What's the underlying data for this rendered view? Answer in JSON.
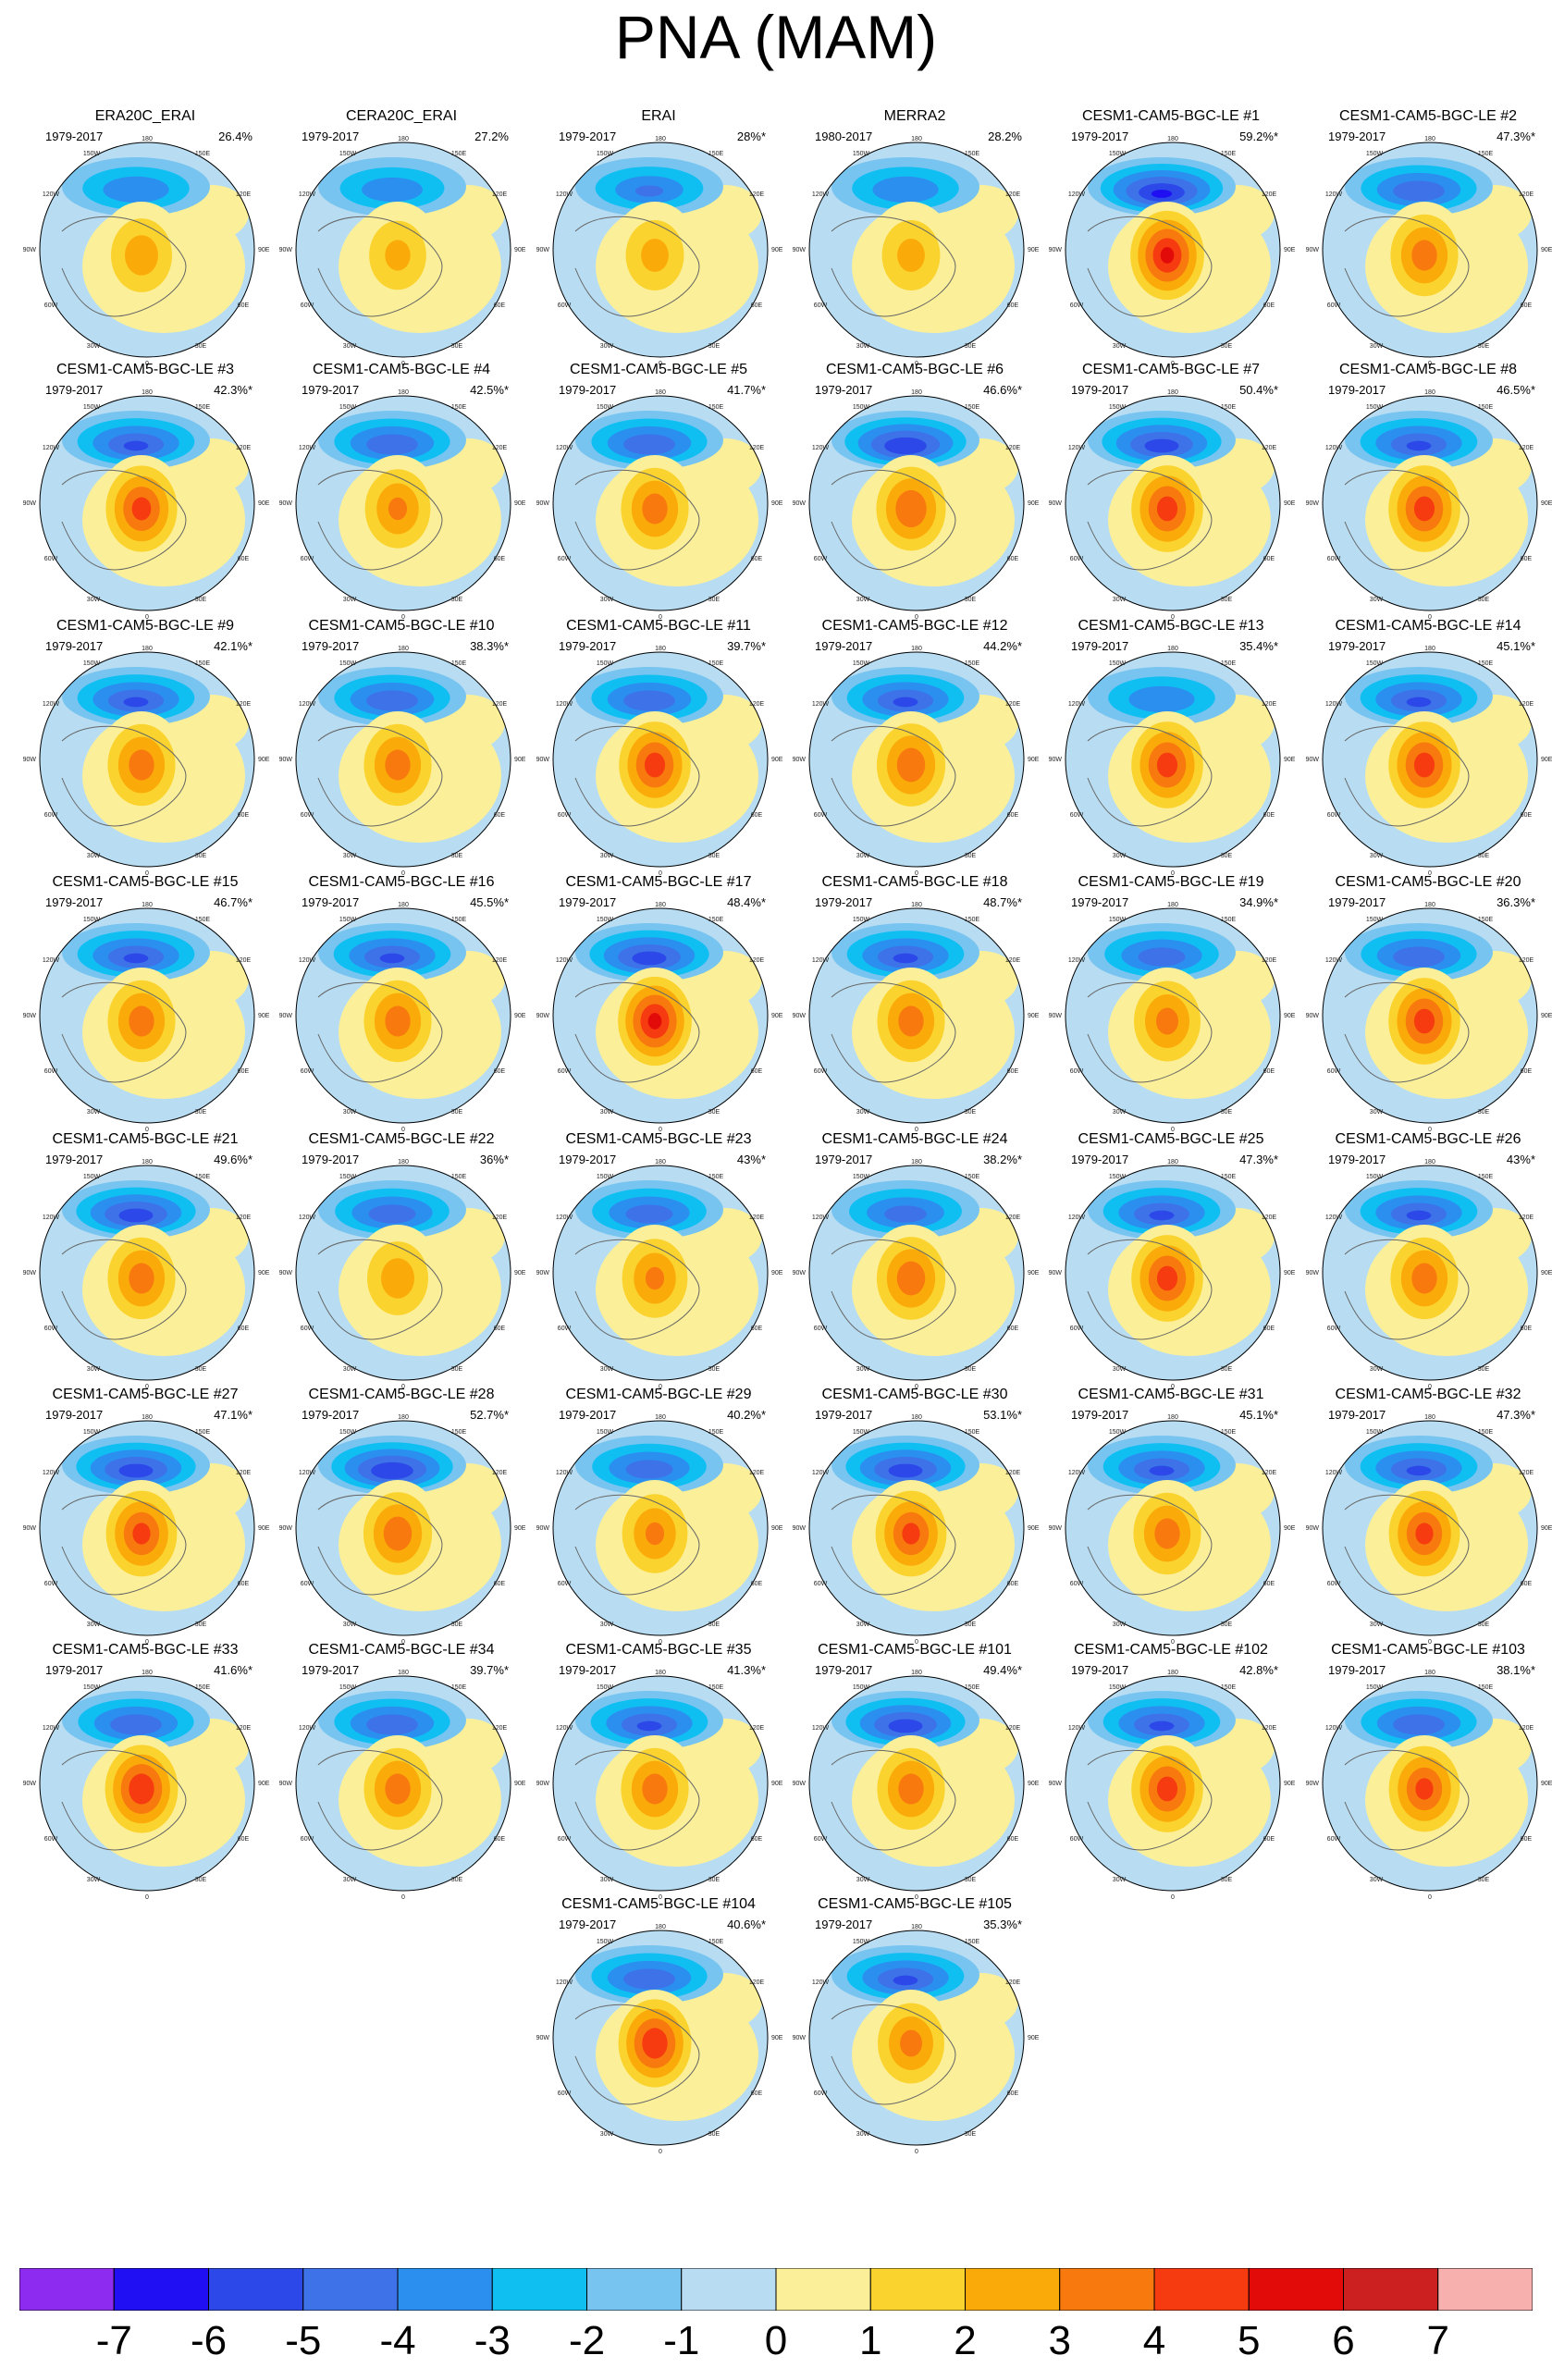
{
  "title": "PNA (MAM)",
  "map_labels": {
    "top": "180",
    "top_left": "150W",
    "top_right": "150E",
    "upper_left": "120W",
    "upper_right": "120E",
    "left": "90W",
    "right": "90E",
    "lower_left": "60W",
    "lower_right": "60E",
    "bottom_left": "30W",
    "bottom_right": "30E",
    "bottom": "0"
  },
  "panels": [
    {
      "title": "ERA20C_ERAI",
      "period": "1979-2017",
      "percent": "26.4%",
      "amp_pos": 2.6,
      "amp_neg": 3.0
    },
    {
      "title": "CERA20C_ERAI",
      "period": "1979-2017",
      "percent": "27.2%",
      "amp_pos": 2.2,
      "amp_neg": 2.8
    },
    {
      "title": "ERAI",
      "period": "1979-2017",
      "percent": "28%*",
      "amp_pos": 2.3,
      "amp_neg": 3.1
    },
    {
      "title": "MERRA2",
      "period": "1980-2017",
      "percent": "28.2%",
      "amp_pos": 2.3,
      "amp_neg": 3.0
    },
    {
      "title": "CESM1-CAM5-BGC-LE #1",
      "period": "1979-2017",
      "percent": "59.2%*",
      "amp_pos": 5.3,
      "amp_neg": 5.2
    },
    {
      "title": "CESM1-CAM5-BGC-LE #2",
      "period": "1979-2017",
      "percent": "47.3%*",
      "amp_pos": 3.6,
      "amp_neg": 4.0
    },
    {
      "title": "CESM1-CAM5-BGC-LE #3",
      "period": "1979-2017",
      "percent": "42.3%*",
      "amp_pos": 4.5,
      "amp_neg": 4.2
    },
    {
      "title": "CESM1-CAM5-BGC-LE #4",
      "period": "1979-2017",
      "percent": "42.5%*",
      "amp_pos": 3.2,
      "amp_neg": 4.0
    },
    {
      "title": "CESM1-CAM5-BGC-LE #5",
      "period": "1979-2017",
      "percent": "41.7%*",
      "amp_pos": 3.6,
      "amp_neg": 4.0
    },
    {
      "title": "CESM1-CAM5-BGC-LE #6",
      "period": "1979-2017",
      "percent": "46.6%*",
      "amp_pos": 4.0,
      "amp_neg": 5.0
    },
    {
      "title": "CESM1-CAM5-BGC-LE #7",
      "period": "1979-2017",
      "percent": "50.4%*",
      "amp_pos": 4.6,
      "amp_neg": 4.6
    },
    {
      "title": "CESM1-CAM5-BGC-LE #8",
      "period": "1979-2017",
      "percent": "46.5%*",
      "amp_pos": 4.6,
      "amp_neg": 4.2
    },
    {
      "title": "CESM1-CAM5-BGC-LE #9",
      "period": "1979-2017",
      "percent": "42.1%*",
      "amp_pos": 3.6,
      "amp_neg": 4.2
    },
    {
      "title": "CESM1-CAM5-BGC-LE #10",
      "period": "1979-2017",
      "percent": "38.3%*",
      "amp_pos": 3.6,
      "amp_neg": 4.0
    },
    {
      "title": "CESM1-CAM5-BGC-LE #11",
      "period": "1979-2017",
      "percent": "39.7%*",
      "amp_pos": 4.6,
      "amp_neg": 4.0
    },
    {
      "title": "CESM1-CAM5-BGC-LE #12",
      "period": "1979-2017",
      "percent": "44.2%*",
      "amp_pos": 3.8,
      "amp_neg": 4.2
    },
    {
      "title": "CESM1-CAM5-BGC-LE #13",
      "period": "1979-2017",
      "percent": "35.4%*",
      "amp_pos": 4.6,
      "amp_neg": 3.0
    },
    {
      "title": "CESM1-CAM5-BGC-LE #14",
      "period": "1979-2017",
      "percent": "45.1%*",
      "amp_pos": 4.6,
      "amp_neg": 4.2
    },
    {
      "title": "CESM1-CAM5-BGC-LE #15",
      "period": "1979-2017",
      "percent": "46.7%*",
      "amp_pos": 3.6,
      "amp_neg": 4.2
    },
    {
      "title": "CESM1-CAM5-BGC-LE #16",
      "period": "1979-2017",
      "percent": "45.5%*",
      "amp_pos": 3.6,
      "amp_neg": 4.2
    },
    {
      "title": "CESM1-CAM5-BGC-LE #17",
      "period": "1979-2017",
      "percent": "48.4%*",
      "amp_pos": 5.3,
      "amp_neg": 4.6
    },
    {
      "title": "CESM1-CAM5-BGC-LE #18",
      "period": "1979-2017",
      "percent": "48.7%*",
      "amp_pos": 3.6,
      "amp_neg": 4.2
    },
    {
      "title": "CESM1-CAM5-BGC-LE #19",
      "period": "1979-2017",
      "percent": "34.9%*",
      "amp_pos": 3.4,
      "amp_neg": 3.8
    },
    {
      "title": "CESM1-CAM5-BGC-LE #20",
      "period": "1979-2017",
      "percent": "36.3%*",
      "amp_pos": 4.6,
      "amp_neg": 4.0
    },
    {
      "title": "CESM1-CAM5-BGC-LE #21",
      "period": "1979-2017",
      "percent": "49.6%*",
      "amp_pos": 3.6,
      "amp_neg": 4.6
    },
    {
      "title": "CESM1-CAM5-BGC-LE #22",
      "period": "1979-2017",
      "percent": "36%*",
      "amp_pos": 2.6,
      "amp_neg": 3.8
    },
    {
      "title": "CESM1-CAM5-BGC-LE #23",
      "period": "1979-2017",
      "percent": "43%*",
      "amp_pos": 3.2,
      "amp_neg": 3.8
    },
    {
      "title": "CESM1-CAM5-BGC-LE #24",
      "period": "1979-2017",
      "percent": "38.2%*",
      "amp_pos": 3.8,
      "amp_neg": 3.6
    },
    {
      "title": "CESM1-CAM5-BGC-LE #25",
      "period": "1979-2017",
      "percent": "47.3%*",
      "amp_pos": 4.6,
      "amp_neg": 4.2
    },
    {
      "title": "CESM1-CAM5-BGC-LE #26",
      "period": "1979-2017",
      "percent": "43%*",
      "amp_pos": 3.6,
      "amp_neg": 4.2
    },
    {
      "title": "CESM1-CAM5-BGC-LE #27",
      "period": "1979-2017",
      "percent": "47.1%*",
      "amp_pos": 4.4,
      "amp_neg": 4.6
    },
    {
      "title": "CESM1-CAM5-BGC-LE #28",
      "period": "1979-2017",
      "percent": "52.7%*",
      "amp_pos": 3.8,
      "amp_neg": 5.0
    },
    {
      "title": "CESM1-CAM5-BGC-LE #29",
      "period": "1979-2017",
      "percent": "40.2%*",
      "amp_pos": 3.2,
      "amp_neg": 3.8
    },
    {
      "title": "CESM1-CAM5-BGC-LE #30",
      "period": "1979-2017",
      "percent": "53.1%*",
      "amp_pos": 4.4,
      "amp_neg": 4.6
    },
    {
      "title": "CESM1-CAM5-BGC-LE #31",
      "period": "1979-2017",
      "percent": "45.1%*",
      "amp_pos": 3.6,
      "amp_neg": 4.2
    },
    {
      "title": "CESM1-CAM5-BGC-LE #32",
      "period": "1979-2017",
      "percent": "47.3%*",
      "amp_pos": 4.4,
      "amp_neg": 4.2
    },
    {
      "title": "CESM1-CAM5-BGC-LE #33",
      "period": "1979-2017",
      "percent": "41.6%*",
      "amp_pos": 5.0,
      "amp_neg": 4.0
    },
    {
      "title": "CESM1-CAM5-BGC-LE #34",
      "period": "1979-2017",
      "percent": "39.7%*",
      "amp_pos": 3.6,
      "amp_neg": 4.0
    },
    {
      "title": "CESM1-CAM5-BGC-LE #35",
      "period": "1979-2017",
      "percent": "41.3%*",
      "amp_pos": 3.6,
      "amp_neg": 4.2
    },
    {
      "title": "CESM1-CAM5-BGC-LE #101",
      "period": "1979-2017",
      "percent": "49.4%*",
      "amp_pos": 3.6,
      "amp_neg": 4.6
    },
    {
      "title": "CESM1-CAM5-BGC-LE #102",
      "period": "1979-2017",
      "percent": "42.8%*",
      "amp_pos": 4.6,
      "amp_neg": 4.2
    },
    {
      "title": "CESM1-CAM5-BGC-LE #103",
      "period": "1979-2017",
      "percent": "38.1%*",
      "amp_pos": 4.4,
      "amp_neg": 4.0
    },
    {
      "title": "CESM1-CAM5-BGC-LE #104",
      "period": "1979-2017",
      "percent": "40.6%*",
      "amp_pos": 5.0,
      "amp_neg": 4.0
    },
    {
      "title": "CESM1-CAM5-BGC-LE #105",
      "period": "1979-2017",
      "percent": "35.3%*",
      "amp_pos": 3.4,
      "amp_neg": 4.2
    }
  ],
  "colorbar": {
    "colors": [
      "#8e2bf0",
      "#1f0ff2",
      "#2c48e8",
      "#3d72e8",
      "#2b8ff0",
      "#0fbff2",
      "#78c4f0",
      "#b8ddf2",
      "#fbf099",
      "#fbd32e",
      "#faab0a",
      "#f87a0e",
      "#f53b0f",
      "#e30a0a",
      "#cc1f1f",
      "#f7b0ad"
    ],
    "labels": [
      "-7",
      "-6",
      "-5",
      "-4",
      "-3",
      "-2",
      "-1",
      "0",
      "1",
      "2",
      "3",
      "4",
      "5",
      "6",
      "7"
    ]
  }
}
